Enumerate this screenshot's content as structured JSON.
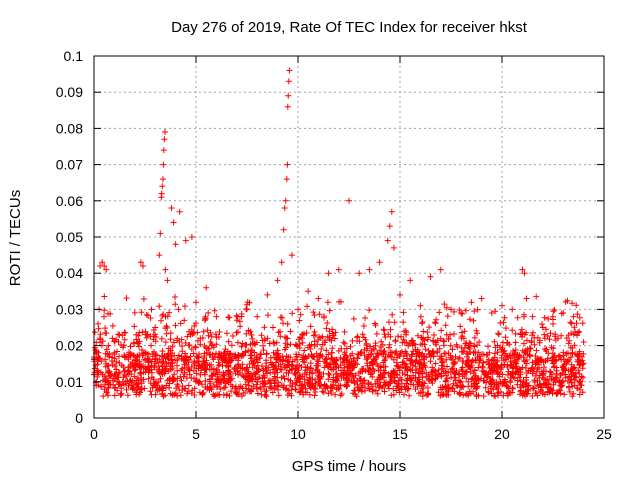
{
  "chart_data": {
    "type": "scatter",
    "title": "Day 276 of 2019, Rate Of TEC Index for receiver hkst",
    "xlabel": "GPS time / hours",
    "ylabel": "ROTI / TECUs",
    "xlim": [
      0,
      25
    ],
    "ylim": [
      0,
      0.1
    ],
    "xticks": [
      0,
      5,
      10,
      15,
      20,
      25
    ],
    "xtick_labels": [
      "0",
      "5",
      "10",
      "15",
      "20",
      "25"
    ],
    "yticks": [
      0,
      0.01,
      0.02,
      0.03,
      0.04,
      0.05,
      0.06,
      0.07,
      0.08,
      0.09,
      0.1
    ],
    "ytick_labels": [
      "0",
      "0.01",
      "0.02",
      "0.03",
      "0.04",
      "0.05",
      "0.06",
      "0.07",
      "0.08",
      "0.09",
      "0.1"
    ],
    "grid": true,
    "marker": "+",
    "color": "#ff0000",
    "data_range": [
      0.0,
      24.0
    ],
    "series": [
      {
        "name": "ROTI",
        "points": [
          [
            0.0,
            0.012
          ],
          [
            0.1,
            0.018
          ],
          [
            0.2,
            0.026
          ],
          [
            0.25,
            0.03
          ],
          [
            0.3,
            0.042
          ],
          [
            0.4,
            0.043
          ],
          [
            0.5,
            0.042
          ],
          [
            0.6,
            0.041
          ],
          [
            0.7,
            0.02
          ],
          [
            0.9,
            0.022
          ],
          [
            1.2,
            0.021
          ],
          [
            1.5,
            0.017
          ],
          [
            2.0,
            0.015
          ],
          [
            2.3,
            0.043
          ],
          [
            2.4,
            0.042
          ],
          [
            2.8,
            0.02
          ],
          [
            3.0,
            0.025
          ],
          [
            3.2,
            0.045
          ],
          [
            3.25,
            0.051
          ],
          [
            3.3,
            0.061
          ],
          [
            3.32,
            0.062
          ],
          [
            3.35,
            0.064
          ],
          [
            3.38,
            0.066
          ],
          [
            3.4,
            0.07
          ],
          [
            3.42,
            0.074
          ],
          [
            3.45,
            0.077
          ],
          [
            3.48,
            0.079
          ],
          [
            3.5,
            0.041
          ],
          [
            3.6,
            0.038
          ],
          [
            3.8,
            0.058
          ],
          [
            3.9,
            0.054
          ],
          [
            4.0,
            0.048
          ],
          [
            4.2,
            0.057
          ],
          [
            4.5,
            0.049
          ],
          [
            4.8,
            0.05
          ],
          [
            5.0,
            0.032
          ],
          [
            5.5,
            0.036
          ],
          [
            6.0,
            0.028
          ],
          [
            7.0,
            0.027
          ],
          [
            7.5,
            0.03
          ],
          [
            8.0,
            0.028
          ],
          [
            8.5,
            0.034
          ],
          [
            9.0,
            0.038
          ],
          [
            9.2,
            0.043
          ],
          [
            9.3,
            0.052
          ],
          [
            9.35,
            0.058
          ],
          [
            9.4,
            0.06
          ],
          [
            9.45,
            0.066
          ],
          [
            9.48,
            0.07
          ],
          [
            9.5,
            0.086
          ],
          [
            9.52,
            0.089
          ],
          [
            9.55,
            0.093
          ],
          [
            9.58,
            0.096
          ],
          [
            9.7,
            0.045
          ],
          [
            10.0,
            0.03
          ],
          [
            10.5,
            0.035
          ],
          [
            11.0,
            0.033
          ],
          [
            11.5,
            0.04
          ],
          [
            12.0,
            0.041
          ],
          [
            12.5,
            0.06
          ],
          [
            13.0,
            0.04
          ],
          [
            13.5,
            0.041
          ],
          [
            14.0,
            0.043
          ],
          [
            14.4,
            0.049
          ],
          [
            14.5,
            0.053
          ],
          [
            14.6,
            0.057
          ],
          [
            14.7,
            0.047
          ],
          [
            15.0,
            0.034
          ],
          [
            15.5,
            0.038
          ],
          [
            16.0,
            0.031
          ],
          [
            16.5,
            0.039
          ],
          [
            17.0,
            0.041
          ],
          [
            17.5,
            0.03
          ],
          [
            18.0,
            0.029
          ],
          [
            18.5,
            0.032
          ],
          [
            19.0,
            0.033
          ],
          [
            19.5,
            0.029
          ],
          [
            20.0,
            0.031
          ],
          [
            20.5,
            0.03
          ],
          [
            21.0,
            0.041
          ],
          [
            21.1,
            0.04
          ],
          [
            21.2,
            0.033
          ],
          [
            21.5,
            0.028
          ],
          [
            22.0,
            0.025
          ],
          [
            22.5,
            0.026
          ],
          [
            23.0,
            0.029
          ],
          [
            23.5,
            0.028
          ],
          [
            24.0,
            0.021
          ]
        ]
      }
    ]
  }
}
